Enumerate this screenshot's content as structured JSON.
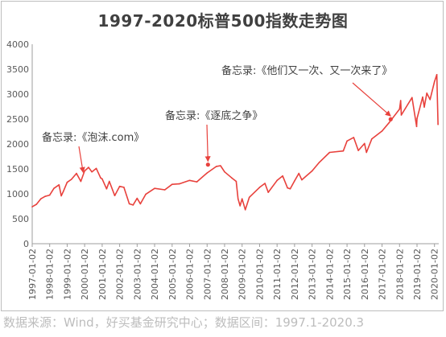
{
  "chart_data": {
    "type": "line",
    "title": "1997-2020标普500指数走势图",
    "xlabel": "",
    "ylabel": "",
    "ylim": [
      0,
      4000
    ],
    "yticks": [
      0,
      500,
      1000,
      1500,
      2000,
      2500,
      3000,
      3500,
      4000
    ],
    "xticks": [
      "1997-01-02",
      "1998-01-02",
      "1999-01-02",
      "2000-01-02",
      "2001-01-02",
      "2002-01-02",
      "2003-01-02",
      "2004-01-02",
      "2005-01-02",
      "2006-01-02",
      "2007-01-02",
      "2008-01-02",
      "2009-01-02",
      "2010-01-02",
      "2011-01-02",
      "2012-01-02",
      "2013-01-02",
      "2014-01-02",
      "2015-01-02",
      "2016-01-02",
      "2017-01-02",
      "2018-01-02",
      "2019-01-02",
      "2020-01-02"
    ],
    "grid": false,
    "legend": "none",
    "line_color": "#e8413c",
    "series": [
      {
        "points": [
          [
            "1997-01-02",
            740
          ],
          [
            "1997-04-01",
            790
          ],
          [
            "1997-07-01",
            900
          ],
          [
            "1997-10-01",
            950
          ],
          [
            "1998-01-02",
            975
          ],
          [
            "1998-04-01",
            1110
          ],
          [
            "1998-07-15",
            1180
          ],
          [
            "1998-08-31",
            960
          ],
          [
            "1998-10-15",
            1050
          ],
          [
            "1999-01-02",
            1230
          ],
          [
            "1999-04-01",
            1290
          ],
          [
            "1999-07-15",
            1410
          ],
          [
            "1999-10-15",
            1250
          ],
          [
            "2000-01-02",
            1460
          ],
          [
            "2000-03-24",
            1530
          ],
          [
            "2000-06-01",
            1440
          ],
          [
            "2000-09-01",
            1510
          ],
          [
            "2000-12-01",
            1320
          ],
          [
            "2001-01-02",
            1300
          ],
          [
            "2001-04-04",
            1100
          ],
          [
            "2001-06-01",
            1250
          ],
          [
            "2001-09-21",
            965
          ],
          [
            "2002-01-02",
            1150
          ],
          [
            "2002-04-01",
            1130
          ],
          [
            "2002-07-23",
            800
          ],
          [
            "2002-10-09",
            775
          ],
          [
            "2003-01-02",
            910
          ],
          [
            "2003-03-11",
            800
          ],
          [
            "2003-07-01",
            990
          ],
          [
            "2004-01-02",
            1110
          ],
          [
            "2004-08-01",
            1080
          ],
          [
            "2005-01-02",
            1190
          ],
          [
            "2005-06-01",
            1200
          ],
          [
            "2006-01-02",
            1270
          ],
          [
            "2006-06-01",
            1240
          ],
          [
            "2007-01-02",
            1420
          ],
          [
            "2007-07-15",
            1550
          ],
          [
            "2007-10-09",
            1565
          ],
          [
            "2008-01-02",
            1440
          ],
          [
            "2008-06-01",
            1320
          ],
          [
            "2008-09-01",
            1250
          ],
          [
            "2008-10-10",
            900
          ],
          [
            "2008-11-20",
            760
          ],
          [
            "2009-01-02",
            900
          ],
          [
            "2009-03-09",
            680
          ],
          [
            "2009-06-01",
            930
          ],
          [
            "2010-01-02",
            1130
          ],
          [
            "2010-04-23",
            1210
          ],
          [
            "2010-07-01",
            1030
          ],
          [
            "2011-01-02",
            1270
          ],
          [
            "2011-04-29",
            1360
          ],
          [
            "2011-08-08",
            1120
          ],
          [
            "2011-10-03",
            1100
          ],
          [
            "2012-01-02",
            1260
          ],
          [
            "2012-04-01",
            1410
          ],
          [
            "2012-06-01",
            1280
          ],
          [
            "2013-01-02",
            1460
          ],
          [
            "2013-06-01",
            1630
          ],
          [
            "2014-01-02",
            1830
          ],
          [
            "2014-10-15",
            1860
          ],
          [
            "2015-01-02",
            2060
          ],
          [
            "2015-05-21",
            2130
          ],
          [
            "2015-08-25",
            1870
          ],
          [
            "2016-01-02",
            2010
          ],
          [
            "2016-02-11",
            1830
          ],
          [
            "2016-06-01",
            2100
          ],
          [
            "2017-01-02",
            2260
          ],
          [
            "2017-06-01",
            2430
          ],
          [
            "2018-01-02",
            2700
          ],
          [
            "2018-01-26",
            2870
          ],
          [
            "2018-02-08",
            2580
          ],
          [
            "2018-09-20",
            2930
          ],
          [
            "2018-12-24",
            2350
          ],
          [
            "2019-01-02",
            2510
          ],
          [
            "2019-04-30",
            2940
          ],
          [
            "2019-06-03",
            2740
          ],
          [
            "2019-07-26",
            3020
          ],
          [
            "2019-10-01",
            2890
          ],
          [
            "2020-01-02",
            3250
          ],
          [
            "2020-02-19",
            3390
          ],
          [
            "2020-03-16",
            2390
          ]
        ]
      }
    ],
    "annotations": [
      {
        "text": "备忘录:《泡沫.com》",
        "date": "1999-12-01",
        "value": 1430,
        "marker": "arrow"
      },
      {
        "text": "备忘录:《逐底之争》",
        "date": "2007-01-20",
        "value": 1650,
        "marker": "arrow-dot"
      },
      {
        "text": "备忘录:《他们又一次、又一次来了》",
        "date": "2017-07-01",
        "value": 2560,
        "marker": "arrow-dot"
      }
    ]
  },
  "footnote": "数据来源：Wind，好买基金研究中心；数据区间：1997.1-2020.3"
}
